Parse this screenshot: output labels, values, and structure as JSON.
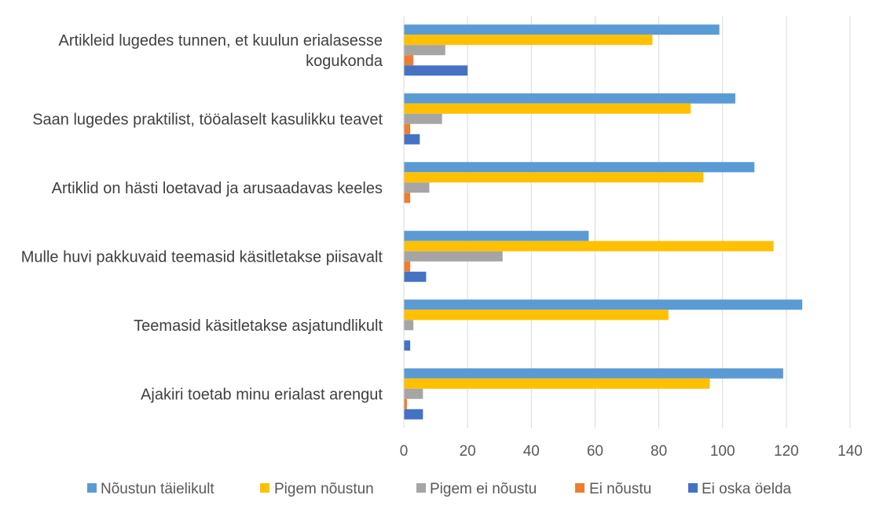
{
  "chart_data": {
    "type": "bar",
    "orientation": "horizontal",
    "title": "",
    "xlabel": "",
    "ylabel": "",
    "xlim": [
      0,
      140
    ],
    "x_ticks": [
      0,
      20,
      40,
      60,
      80,
      100,
      120,
      140
    ],
    "grid": true,
    "legend_position": "bottom",
    "categories": [
      [
        "Artikleid lugedes tunnen, et kuulun erialasesse",
        "kogukonda"
      ],
      [
        "Saan lugedes praktilist, tööalaselt kasulikku teavet"
      ],
      [
        "Artiklid on hästi loetavad ja arusaadavas keeles"
      ],
      [
        "Mulle huvi pakkuvaid teemasid käsitletakse piisavalt"
      ],
      [
        "Teemasid käsitletakse asjatundlikult"
      ],
      [
        "Ajakiri toetab minu erialast arengut"
      ]
    ],
    "series": [
      {
        "name": "Nõustun täielikult",
        "color": "#5B9BD5",
        "values": [
          99,
          104,
          110,
          58,
          125,
          119
        ]
      },
      {
        "name": "Pigem nõustun",
        "color": "#FFC000",
        "values": [
          78,
          90,
          94,
          116,
          83,
          96
        ]
      },
      {
        "name": "Pigem ei nõustu",
        "color": "#A5A5A5",
        "values": [
          13,
          12,
          8,
          31,
          3,
          6
        ]
      },
      {
        "name": "Ei nõustu",
        "color": "#ED7D31",
        "values": [
          3,
          2,
          2,
          2,
          0,
          1
        ]
      },
      {
        "name": "Ei oska öelda",
        "color": "#4472C4",
        "values": [
          20,
          5,
          0,
          7,
          2,
          6
        ]
      }
    ]
  }
}
